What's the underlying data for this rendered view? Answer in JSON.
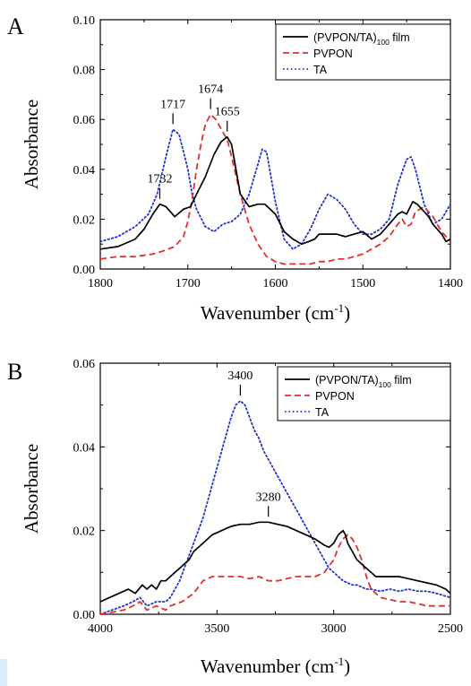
{
  "chart_data": [
    {
      "panel_label": "A",
      "type": "line",
      "xlabel": "Wavenumber (cm",
      "xlabel_sup": "-1",
      "xlabel_tail": ")",
      "ylabel": "Absorbance",
      "xlim": [
        1800,
        1400
      ],
      "ylim": [
        0.0,
        0.1
      ],
      "x_reversed": true,
      "xticks": [
        1800,
        1700,
        1600,
        1500,
        1400
      ],
      "xtick_labels": [
        "1800",
        "1700",
        "1600",
        "1500",
        "1400"
      ],
      "yticks": [
        0.0,
        0.02,
        0.04,
        0.06,
        0.08,
        0.1
      ],
      "ytick_labels": [
        "0.00",
        "0.02",
        "0.04",
        "0.06",
        "0.08",
        "0.10"
      ],
      "legend_position": "top-right",
      "series": [
        {
          "name": "(PVPON/TA)100 film",
          "name_main": "(PVPON/TA)",
          "name_sub": "100",
          "name_tail": " film",
          "color": "#000000",
          "style": "solid",
          "x": [
            1800,
            1780,
            1760,
            1750,
            1740,
            1732,
            1725,
            1715,
            1705,
            1697,
            1690,
            1680,
            1670,
            1662,
            1655,
            1650,
            1645,
            1640,
            1630,
            1620,
            1612,
            1600,
            1590,
            1580,
            1570,
            1562,
            1555,
            1550,
            1540,
            1530,
            1520,
            1510,
            1500,
            1490,
            1480,
            1470,
            1460,
            1455,
            1450,
            1443,
            1438,
            1430,
            1425,
            1420,
            1410,
            1405,
            1400
          ],
          "y": [
            0.008,
            0.009,
            0.012,
            0.016,
            0.022,
            0.026,
            0.025,
            0.021,
            0.024,
            0.025,
            0.03,
            0.037,
            0.046,
            0.051,
            0.053,
            0.05,
            0.04,
            0.03,
            0.025,
            0.026,
            0.026,
            0.022,
            0.015,
            0.012,
            0.01,
            0.011,
            0.012,
            0.014,
            0.014,
            0.014,
            0.013,
            0.014,
            0.015,
            0.012,
            0.014,
            0.018,
            0.022,
            0.023,
            0.022,
            0.027,
            0.026,
            0.023,
            0.021,
            0.018,
            0.014,
            0.011,
            0.012
          ]
        },
        {
          "name": "PVPON",
          "color": "#e03030",
          "style": "dashed",
          "x": [
            1800,
            1780,
            1760,
            1740,
            1730,
            1715,
            1705,
            1700,
            1695,
            1690,
            1685,
            1680,
            1674,
            1668,
            1660,
            1655,
            1650,
            1640,
            1630,
            1620,
            1610,
            1600,
            1590,
            1580,
            1570,
            1560,
            1550,
            1540,
            1530,
            1520,
            1510,
            1500,
            1490,
            1480,
            1470,
            1460,
            1455,
            1450,
            1445,
            1440,
            1430,
            1420,
            1410,
            1400
          ],
          "y": [
            0.004,
            0.005,
            0.005,
            0.006,
            0.007,
            0.009,
            0.013,
            0.019,
            0.028,
            0.04,
            0.05,
            0.058,
            0.062,
            0.06,
            0.055,
            0.052,
            0.045,
            0.03,
            0.018,
            0.01,
            0.005,
            0.003,
            0.002,
            0.002,
            0.002,
            0.002,
            0.003,
            0.003,
            0.004,
            0.004,
            0.005,
            0.006,
            0.008,
            0.01,
            0.013,
            0.018,
            0.02,
            0.017,
            0.018,
            0.023,
            0.025,
            0.021,
            0.015,
            0.011
          ]
        },
        {
          "name": "TA",
          "color": "#2233cc",
          "style": "dotted",
          "x": [
            1800,
            1780,
            1760,
            1745,
            1735,
            1725,
            1717,
            1710,
            1700,
            1695,
            1690,
            1680,
            1670,
            1660,
            1650,
            1640,
            1630,
            1620,
            1615,
            1610,
            1600,
            1590,
            1580,
            1570,
            1560,
            1550,
            1540,
            1530,
            1520,
            1510,
            1500,
            1490,
            1480,
            1470,
            1460,
            1450,
            1445,
            1440,
            1430,
            1420,
            1410,
            1400
          ],
          "y": [
            0.011,
            0.013,
            0.017,
            0.022,
            0.03,
            0.045,
            0.056,
            0.054,
            0.04,
            0.03,
            0.024,
            0.017,
            0.015,
            0.018,
            0.019,
            0.022,
            0.03,
            0.042,
            0.048,
            0.047,
            0.027,
            0.012,
            0.008,
            0.01,
            0.016,
            0.024,
            0.03,
            0.028,
            0.024,
            0.018,
            0.014,
            0.014,
            0.016,
            0.02,
            0.034,
            0.044,
            0.045,
            0.04,
            0.026,
            0.018,
            0.02,
            0.026
          ]
        }
      ],
      "annotations": [
        {
          "text": "1717",
          "x": 1717,
          "y": 0.056
        },
        {
          "text": "1674",
          "x": 1674,
          "y": 0.062
        },
        {
          "text": "1655",
          "x": 1655,
          "y": 0.053
        },
        {
          "text": "1732",
          "x": 1732,
          "y": 0.026
        }
      ]
    },
    {
      "panel_label": "B",
      "type": "line",
      "xlabel": "Wavenumber (cm",
      "xlabel_sup": "-1",
      "xlabel_tail": ")",
      "ylabel": "Absorbance",
      "xlim": [
        4000,
        2500
      ],
      "ylim": [
        0.0,
        0.06
      ],
      "x_reversed": true,
      "xticks": [
        4000,
        3500,
        3000,
        2500
      ],
      "xtick_labels": [
        "4000",
        "3500",
        "3000",
        "2500"
      ],
      "yticks": [
        0.0,
        0.02,
        0.04,
        0.06
      ],
      "ytick_labels": [
        "0.00",
        "0.02",
        "0.04",
        "0.06"
      ],
      "legend_position": "top-right",
      "series": [
        {
          "name": "(PVPON/TA)100 film",
          "name_main": "(PVPON/TA)",
          "name_sub": "100",
          "name_tail": " film",
          "color": "#000000",
          "style": "solid",
          "x": [
            4000,
            3960,
            3920,
            3880,
            3850,
            3820,
            3800,
            3780,
            3760,
            3740,
            3720,
            3700,
            3680,
            3660,
            3640,
            3620,
            3600,
            3560,
            3520,
            3480,
            3440,
            3400,
            3360,
            3320,
            3280,
            3240,
            3200,
            3160,
            3120,
            3080,
            3040,
            3020,
            3000,
            2980,
            2960,
            2950,
            2940,
            2920,
            2900,
            2880,
            2860,
            2840,
            2820,
            2800,
            2760,
            2720,
            2680,
            2640,
            2600,
            2560,
            2520,
            2500
          ],
          "y": [
            0.003,
            0.004,
            0.005,
            0.006,
            0.005,
            0.007,
            0.006,
            0.007,
            0.006,
            0.008,
            0.008,
            0.009,
            0.01,
            0.011,
            0.012,
            0.013,
            0.015,
            0.017,
            0.019,
            0.02,
            0.021,
            0.0215,
            0.0215,
            0.022,
            0.022,
            0.0215,
            0.021,
            0.02,
            0.019,
            0.018,
            0.0165,
            0.016,
            0.017,
            0.019,
            0.02,
            0.019,
            0.017,
            0.015,
            0.013,
            0.012,
            0.011,
            0.01,
            0.009,
            0.009,
            0.009,
            0.009,
            0.0085,
            0.008,
            0.0075,
            0.007,
            0.006,
            0.005
          ]
        },
        {
          "name": "PVPON",
          "color": "#e03030",
          "style": "dashed",
          "x": [
            4000,
            3950,
            3900,
            3860,
            3830,
            3800,
            3760,
            3720,
            3700,
            3650,
            3600,
            3560,
            3520,
            3480,
            3440,
            3400,
            3360,
            3320,
            3280,
            3240,
            3200,
            3160,
            3120,
            3080,
            3040,
            3000,
            2980,
            2960,
            2940,
            2920,
            2900,
            2880,
            2860,
            2840,
            2800,
            2760,
            2720,
            2680,
            2640,
            2600,
            2560,
            2500
          ],
          "y": [
            0.0,
            0.0005,
            0.001,
            0.002,
            0.003,
            0.001,
            0.002,
            0.001,
            0.002,
            0.003,
            0.005,
            0.008,
            0.009,
            0.009,
            0.009,
            0.009,
            0.0085,
            0.009,
            0.008,
            0.008,
            0.0085,
            0.009,
            0.009,
            0.009,
            0.01,
            0.013,
            0.016,
            0.018,
            0.019,
            0.018,
            0.016,
            0.013,
            0.009,
            0.006,
            0.004,
            0.0035,
            0.003,
            0.003,
            0.0025,
            0.002,
            0.002,
            0.002
          ]
        },
        {
          "name": "TA",
          "color": "#2233cc",
          "style": "dotted",
          "x": [
            4000,
            3950,
            3900,
            3860,
            3830,
            3800,
            3760,
            3720,
            3700,
            3680,
            3660,
            3640,
            3620,
            3600,
            3580,
            3560,
            3540,
            3520,
            3500,
            3480,
            3460,
            3440,
            3420,
            3400,
            3380,
            3360,
            3340,
            3320,
            3300,
            3280,
            3260,
            3240,
            3220,
            3200,
            3180,
            3160,
            3140,
            3120,
            3100,
            3080,
            3060,
            3040,
            3020,
            3000,
            2980,
            2960,
            2940,
            2920,
            2900,
            2880,
            2860,
            2840,
            2800,
            2760,
            2720,
            2680,
            2640,
            2600,
            2560,
            2500
          ],
          "y": [
            0.0,
            0.001,
            0.002,
            0.003,
            0.004,
            0.002,
            0.003,
            0.003,
            0.004,
            0.006,
            0.008,
            0.011,
            0.014,
            0.017,
            0.02,
            0.023,
            0.027,
            0.031,
            0.035,
            0.039,
            0.043,
            0.047,
            0.05,
            0.051,
            0.05,
            0.047,
            0.044,
            0.042,
            0.039,
            0.037,
            0.035,
            0.033,
            0.031,
            0.029,
            0.027,
            0.025,
            0.023,
            0.021,
            0.019,
            0.017,
            0.015,
            0.013,
            0.011,
            0.01,
            0.009,
            0.008,
            0.0075,
            0.007,
            0.007,
            0.0065,
            0.006,
            0.006,
            0.0055,
            0.006,
            0.0055,
            0.006,
            0.0055,
            0.0055,
            0.005,
            0.004
          ]
        }
      ],
      "annotations": [
        {
          "text": "3400",
          "x": 3400,
          "y": 0.051
        },
        {
          "text": "3280",
          "x": 3280,
          "y": 0.022
        }
      ]
    }
  ]
}
